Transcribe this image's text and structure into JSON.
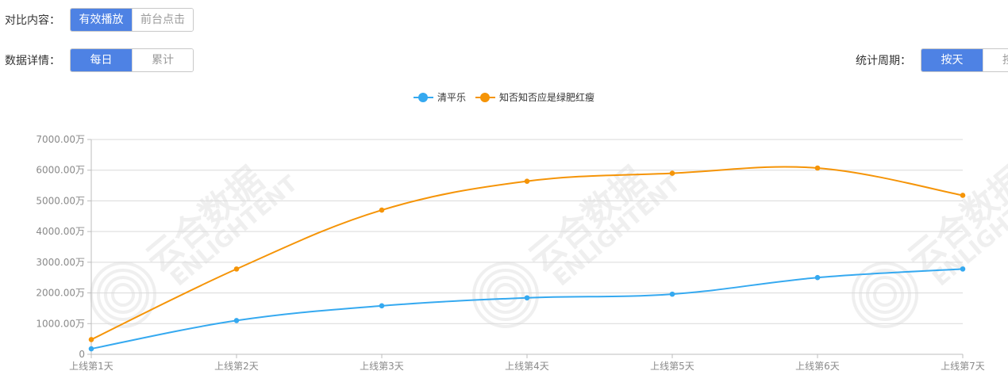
{
  "controls": {
    "compare": {
      "label": "对比内容：",
      "options": [
        "有效播放",
        "前台点击"
      ],
      "active": 0
    },
    "detail": {
      "label": "数据详情：",
      "options": [
        "每日",
        "累计"
      ],
      "active": 0
    },
    "period": {
      "label": "统计周期：",
      "options": [
        "按天",
        "按周"
      ],
      "active": 0
    }
  },
  "watermark": {
    "cn": "云合数据",
    "en": "ENLIGHTENT"
  },
  "colors": {
    "series1": "#35a9f0",
    "series2": "#f59407",
    "grid": "#d9d9d9",
    "axis_text": "#8a8a8a",
    "accent": "#4e82e4"
  },
  "chart_data": {
    "type": "line",
    "smooth": true,
    "categories": [
      "上线第1天",
      "上线第2天",
      "上线第3天",
      "上线第4天",
      "上线第5天",
      "上线第6天",
      "上线第7天"
    ],
    "series": [
      {
        "name": "清平乐",
        "values": [
          180,
          1100,
          1580,
          1840,
          1960,
          2500,
          2780
        ]
      },
      {
        "name": "知否知否应是绿肥红瘦",
        "values": [
          480,
          2780,
          4700,
          5640,
          5900,
          6070,
          5180
        ]
      }
    ],
    "ylim": [
      0,
      7000
    ],
    "yticks": [
      0,
      1000,
      2000,
      3000,
      4000,
      5000,
      6000,
      7000
    ],
    "ytick_labels": [
      "0",
      "1000.00万",
      "2000.00万",
      "3000.00万",
      "4000.00万",
      "5000.00万",
      "6000.00万",
      "7000.00万"
    ],
    "legend_position": "top-center",
    "grid": true
  }
}
